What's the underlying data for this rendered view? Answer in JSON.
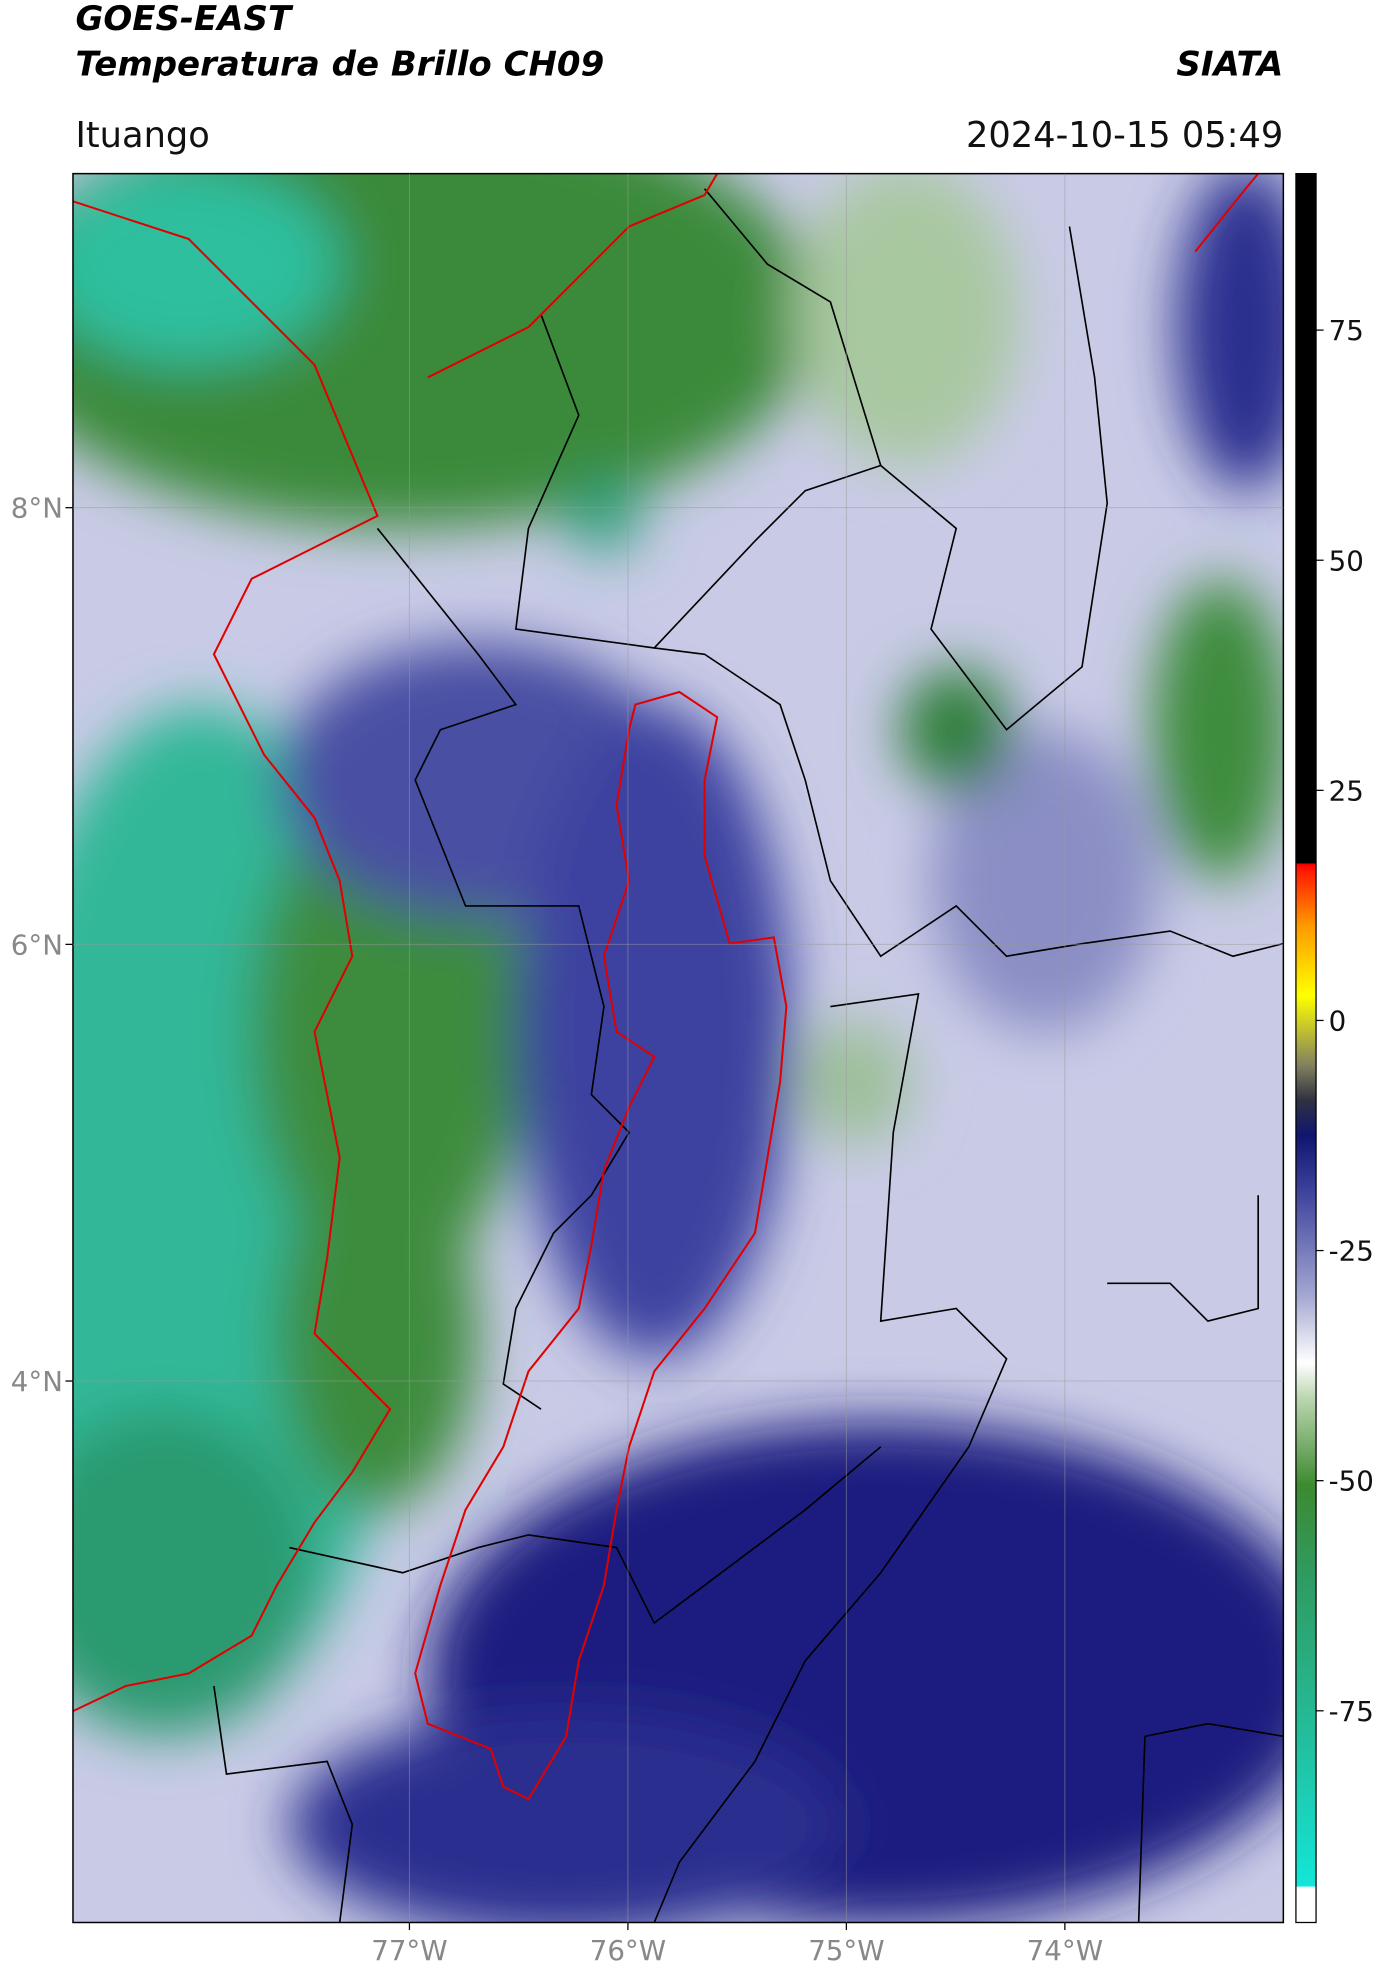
{
  "header": {
    "title": "GOES-EAST",
    "subtitle": "Temperatura de Brillo CH09",
    "institution": "SIATA",
    "location": "Ituango",
    "datetime": "2024-10-15 05:49"
  },
  "map": {
    "xlim": [
      -78.54,
      -73.0
    ],
    "ylim": [
      1.52,
      9.53
    ],
    "xticks": [
      {
        "value": -77,
        "label": "77°W"
      },
      {
        "value": -76,
        "label": "76°W"
      },
      {
        "value": -75,
        "label": "75°W"
      },
      {
        "value": -74,
        "label": "74°W"
      }
    ],
    "yticks": [
      {
        "value": 4,
        "label": "4°N"
      },
      {
        "value": 6,
        "label": "6°N"
      },
      {
        "value": 8,
        "label": "8°N"
      }
    ],
    "grid": true
  },
  "colorbar": {
    "clim": [
      -98,
      92
    ],
    "ticks": [
      -75,
      -50,
      -25,
      0,
      25,
      50,
      75
    ]
  }
}
